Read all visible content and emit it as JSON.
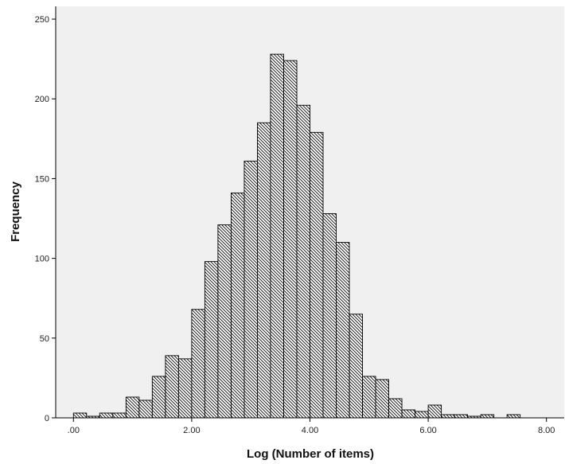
{
  "chart_data": {
    "type": "bar",
    "subtype": "histogram",
    "xlabel": "Log (Number of items)",
    "ylabel": "Frequency",
    "xlim": [
      -0.3,
      8.3
    ],
    "ylim": [
      0,
      258
    ],
    "x_ticks": [
      0,
      2,
      4,
      6,
      8
    ],
    "x_tick_labels": [
      ".00",
      "2.00",
      "4.00",
      "6.00",
      "8.00"
    ],
    "y_ticks": [
      0,
      50,
      100,
      150,
      200,
      250
    ],
    "y_tick_labels": [
      "0",
      "50",
      "100",
      "150",
      "200",
      "250"
    ],
    "bin_width": 0.222,
    "bins": [
      {
        "x0": 0.0,
        "value": 3
      },
      {
        "x0": 0.222,
        "value": 1
      },
      {
        "x0": 0.444,
        "value": 3
      },
      {
        "x0": 0.667,
        "value": 3
      },
      {
        "x0": 0.889,
        "value": 13
      },
      {
        "x0": 1.111,
        "value": 11
      },
      {
        "x0": 1.333,
        "value": 26
      },
      {
        "x0": 1.556,
        "value": 39
      },
      {
        "x0": 1.778,
        "value": 37
      },
      {
        "x0": 2.0,
        "value": 68
      },
      {
        "x0": 2.222,
        "value": 98
      },
      {
        "x0": 2.444,
        "value": 121
      },
      {
        "x0": 2.667,
        "value": 141
      },
      {
        "x0": 2.889,
        "value": 161
      },
      {
        "x0": 3.111,
        "value": 185
      },
      {
        "x0": 3.333,
        "value": 228
      },
      {
        "x0": 3.556,
        "value": 224
      },
      {
        "x0": 3.778,
        "value": 196
      },
      {
        "x0": 4.0,
        "value": 179
      },
      {
        "x0": 4.222,
        "value": 128
      },
      {
        "x0": 4.444,
        "value": 110
      },
      {
        "x0": 4.667,
        "value": 65
      },
      {
        "x0": 4.889,
        "value": 26
      },
      {
        "x0": 5.111,
        "value": 24
      },
      {
        "x0": 5.333,
        "value": 12
      },
      {
        "x0": 5.556,
        "value": 5
      },
      {
        "x0": 5.778,
        "value": 4
      },
      {
        "x0": 6.0,
        "value": 8
      },
      {
        "x0": 6.222,
        "value": 2
      },
      {
        "x0": 6.444,
        "value": 2
      },
      {
        "x0": 6.667,
        "value": 1
      },
      {
        "x0": 6.889,
        "value": 2
      },
      {
        "x0": 7.333,
        "value": 2
      }
    ],
    "grid": false,
    "bar_fill": "hatched",
    "colors": {
      "plot_background": "#f0f0f0",
      "bar_outline": "#000000",
      "hatch": "#000000"
    }
  }
}
